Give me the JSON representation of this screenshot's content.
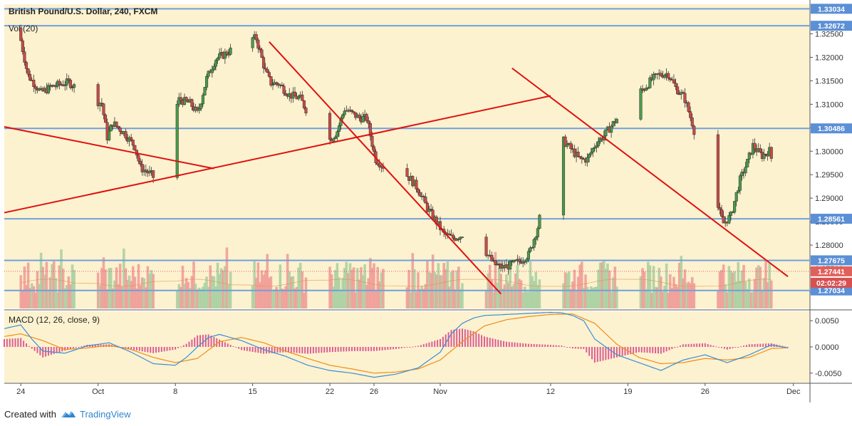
{
  "header": {
    "symbol_title": "British Pound/U.S. Dollar, 240, FXCM",
    "volume_label": "Vol (20)",
    "macd_label": "MACD (12, 26, close, 9)"
  },
  "footer": {
    "created_with": "Created with",
    "brand": "TradingView"
  },
  "colors": {
    "background": "#fdf2cf",
    "up_candle": "#4a9a4a",
    "down_candle": "#c94a46",
    "wick": "#333333",
    "horizontal_line": "#6fa0dc",
    "trend_line": "#e01010",
    "vol_up": "#a7cfa0",
    "vol_down": "#ef9a96",
    "macd_line": "#3a8ed8",
    "signal_line": "#f08c1a",
    "macd_hist": "#d3458a",
    "price_badge": "#5b8fd6",
    "last_price_badge": "#e0605c",
    "countdown_badge": "#d85050"
  },
  "chart_data": [
    {
      "type": "candlestick",
      "title": "British Pound/U.S. Dollar, 240, FXCM",
      "y_axis": {
        "range": [
          1.2665,
          1.3313
        ],
        "ticks": [
          "1.32500",
          "1.32000",
          "1.31500",
          "1.31000",
          "1.30500",
          "1.30000",
          "1.29500",
          "1.29000",
          "1.28500",
          "1.28000",
          "1.27500",
          "1.27000"
        ],
        "tick_values": [
          1.325,
          1.32,
          1.315,
          1.31,
          1.305,
          1.3,
          1.295,
          1.29,
          1.285,
          1.28,
          1.275,
          1.27
        ]
      },
      "x_axis": {
        "date_ticks": [
          "24",
          "Oct",
          "8",
          "15",
          "22",
          "26",
          "Nov",
          "12",
          "19",
          "26",
          "Dec"
        ],
        "ticks_at_day_index": [
          0,
          7,
          14,
          21,
          28,
          32,
          38,
          48,
          55,
          62,
          70
        ],
        "range_day_index": [
          -1.5,
          71.5
        ],
        "note_value": "calendar days from Sep 24"
      },
      "horizontal_levels": [
        "1.33034",
        "1.32672",
        "1.30486",
        "1.28561",
        "1.27675",
        "1.27034"
      ],
      "current_price": "1.27441",
      "countdown": "02:02:29",
      "trend_lines": [
        {
          "points": [
            [
              -1.5,
              1.3052
            ],
            [
              17.5,
              1.2963
            ]
          ]
        },
        {
          "points": [
            [
              -1.5,
              1.2869
            ],
            [
              48,
              1.3118
            ]
          ]
        },
        {
          "points": [
            [
              22.5,
              1.3233
            ],
            [
              43.5,
              1.2696
            ]
          ]
        },
        {
          "points": [
            [
              44.5,
              1.3177
            ],
            [
              69.5,
              1.2733
            ]
          ]
        }
      ],
      "price_path_days": [
        -1.0,
        -0.5,
        0.0,
        0.8,
        2.0,
        3.0,
        4.5,
        6.0,
        6.5,
        7.5,
        8.0,
        8.5,
        9.5,
        10.5,
        11.0,
        12.0,
        12.8,
        13.5,
        14.5,
        15.5,
        16.2,
        17.0,
        17.8,
        18.5,
        19.3,
        20.0,
        20.8,
        21.5,
        22.3,
        22.8,
        23.5,
        24.5,
        25.5,
        26.5,
        27.3,
        28.0,
        28.8,
        29.5,
        30.8,
        31.5,
        32.3,
        33.0,
        34.2,
        35.0,
        35.5,
        36.2,
        37.0,
        37.8,
        38.5,
        39.3,
        40.0,
        40.8,
        41.5,
        42.0,
        43.0,
        43.8,
        44.5,
        45.3,
        46.2,
        47.0,
        47.8,
        48.5,
        49.3,
        50.0,
        50.8,
        51.5,
        52.3,
        53.0,
        53.8,
        54.3,
        55.0,
        55.8,
        56.5,
        57.3,
        58.0,
        58.8,
        59.5,
        60.3,
        61.0,
        61.5,
        62.0,
        63.0,
        63.8,
        64.5,
        65.3,
        66.0,
        66.5,
        67.3,
        68.0,
        68.5,
        69.0,
        69.5
      ],
      "price_path_values": [
        1.3263,
        1.3265,
        1.3255,
        1.3162,
        1.3125,
        1.3138,
        1.3147,
        1.312,
        1.3112,
        1.3102,
        1.303,
        1.306,
        1.304,
        1.301,
        1.2965,
        1.295,
        1.2925,
        1.3045,
        1.311,
        1.3102,
        1.308,
        1.3155,
        1.3196,
        1.3205,
        1.3217,
        1.3246,
        1.3241,
        1.324,
        1.3172,
        1.3145,
        1.3144,
        1.312,
        1.3112,
        1.3066,
        1.3046,
        1.302,
        1.3041,
        1.309,
        1.3071,
        1.307,
        1.2983,
        1.2968,
        1.2983,
        1.2952,
        1.294,
        1.2918,
        1.2878,
        1.285,
        1.2823,
        1.2815,
        1.282,
        1.2835,
        1.2808,
        1.2797,
        1.276,
        1.2752,
        1.2757,
        1.2765,
        1.278,
        1.2838,
        1.293,
        1.2999,
        1.3023,
        1.3005,
        1.2982,
        1.2983,
        1.3018,
        1.3033,
        1.3058,
        1.3072,
        1.31,
        1.3123,
        1.313,
        1.3152,
        1.3163,
        1.3166,
        1.3135,
        1.3113,
        1.306,
        1.3012,
        1.2975,
        1.2905,
        1.2846,
        1.2862,
        1.2937,
        1.2977,
        1.3012,
        1.299,
        1.3001,
        1.2953,
        1.2866,
        1.2862
      ],
      "price_path_days_2": [
        70.0,
        70.5,
        71.0,
        71.5,
        72.0,
        73.0,
        73.8,
        74.5,
        75.3,
        76.0,
        76.8,
        77.5,
        78.3,
        79.0,
        79.8,
        80.5,
        81.3,
        82.0,
        82.8,
        83.5,
        84.3,
        85.0,
        85.8,
        86.5,
        87.3,
        88.0,
        88.8,
        89.5,
        90.3,
        91.0,
        91.8,
        92.5,
        93.3,
        94.0
      ],
      "price_path_values_2": [
        1.2944,
        1.2961,
        1.2992,
        1.3031,
        1.3043,
        1.2968,
        1.2897,
        1.2901,
        1.2916,
        1.2934,
        1.283,
        1.2767,
        1.2775,
        1.283,
        1.2842,
        1.2862,
        1.286,
        1.2856,
        1.2842,
        1.2798,
        1.2792,
        1.2794,
        1.2801,
        1.2816,
        1.2855,
        1.286,
        1.2833,
        1.2815,
        1.2828,
        1.2854,
        1.2817,
        1.279,
        1.28,
        1.2788
      ]
    },
    {
      "type": "bar",
      "title": "Vol (20)",
      "note": "volume histogram overlaid on lower part of price pane"
    },
    {
      "type": "line",
      "title": "MACD (12, 26, close, 9)",
      "y_axis": {
        "range": [
          -0.0068,
          0.0068
        ],
        "ticks": [
          "0.0050",
          "0.0000",
          "-0.0050"
        ],
        "tick_values": [
          0.005,
          0.0,
          -0.005
        ]
      },
      "series": [
        {
          "name": "MACD",
          "x": [
            -1.5,
            0,
            1,
            2,
            4,
            6,
            8,
            10,
            12,
            14,
            15,
            16,
            17,
            18,
            20,
            22,
            24,
            26,
            28,
            30,
            32,
            34,
            36,
            38,
            39,
            40,
            41,
            42,
            44,
            46,
            48,
            49,
            50,
            51,
            52,
            54,
            56,
            58,
            60,
            62,
            64,
            66,
            68,
            70,
            71.5
          ],
          "y": [
            0.0035,
            0.0042,
            0.0015,
            -0.0008,
            -0.0012,
            0.0002,
            0.0008,
            -0.001,
            -0.0032,
            -0.0035,
            -0.002,
            0.0,
            0.0018,
            0.0024,
            0.0012,
            -0.0005,
            -0.0018,
            -0.0035,
            -0.0045,
            -0.005,
            -0.0058,
            -0.0052,
            -0.004,
            -0.001,
            0.0025,
            0.0045,
            0.0055,
            0.006,
            0.0062,
            0.0064,
            0.0066,
            0.0065,
            0.006,
            0.005,
            0.0015,
            -0.0015,
            -0.003,
            -0.0045,
            -0.0025,
            -0.0015,
            -0.003,
            -0.0015,
            0.0004,
            -0.0004,
            -0.0011
          ]
        },
        {
          "name": "Signal",
          "x": [
            -1.5,
            0,
            2,
            4,
            6,
            8,
            10,
            12,
            14,
            16,
            18,
            20,
            22,
            24,
            26,
            28,
            30,
            32,
            34,
            36,
            38,
            40,
            42,
            44,
            46,
            48,
            50,
            52,
            54,
            56,
            58,
            60,
            62,
            64,
            66,
            68,
            70,
            71.5
          ],
          "y": [
            0.002,
            0.0025,
            0.0012,
            -0.0005,
            -0.0002,
            0.0003,
            -0.0005,
            -0.002,
            -0.003,
            -0.0022,
            0.001,
            0.0018,
            0.0008,
            -0.0008,
            -0.0022,
            -0.0035,
            -0.0042,
            -0.005,
            -0.0048,
            -0.0042,
            -0.0025,
            0.001,
            0.004,
            0.0052,
            0.0058,
            0.0062,
            0.0063,
            0.0045,
            0.0005,
            -0.002,
            -0.0032,
            -0.003,
            -0.0022,
            -0.0025,
            -0.002,
            -0.0003,
            -0.0001,
            -0.0008
          ]
        }
      ]
    }
  ]
}
